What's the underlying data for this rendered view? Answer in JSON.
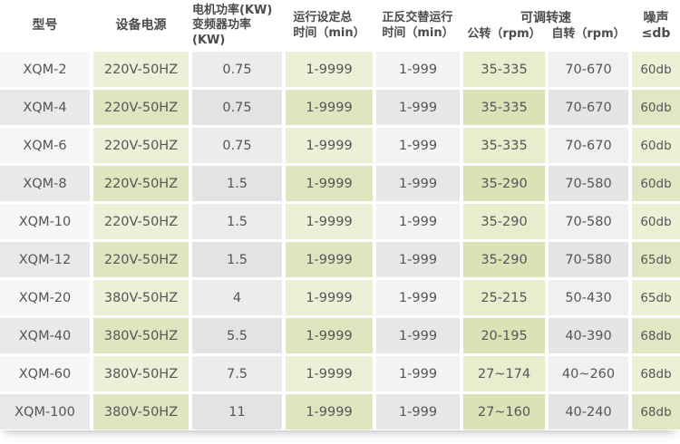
{
  "table": {
    "headers": {
      "model": "型号",
      "power_supply": "设备电源",
      "motor_power_line1": "电机功率(KW)",
      "motor_power_line2": "变频器功率(KW)",
      "run_time_line1": "运行设定总",
      "run_time_line2": "时间（min）",
      "alt_time_line1": "正反交替运行",
      "alt_time_line2": "时间（min）",
      "speed_group": "可调转速",
      "revolution": "公转（rpm）",
      "rotation": "自转（rpm）",
      "noise": "噪声≤db"
    },
    "rows": [
      {
        "model": "XQM-2",
        "power_supply": "220V-50HZ",
        "motor_power": "0.75",
        "run_time": "1-9999",
        "alt_time": "1-999",
        "revolution": "35-335",
        "rotation": "70-670",
        "noise": "60db"
      },
      {
        "model": "XQM-4",
        "power_supply": "220V-50HZ",
        "motor_power": "0.75",
        "run_time": "1-9999",
        "alt_time": "1-999",
        "revolution": "35-335",
        "rotation": "70-670",
        "noise": "60db"
      },
      {
        "model": "XQM-6",
        "power_supply": "220V-50HZ",
        "motor_power": "0.75",
        "run_time": "1-9999",
        "alt_time": "1-999",
        "revolution": "35-335",
        "rotation": "70-670",
        "noise": "60db"
      },
      {
        "model": "XQM-8",
        "power_supply": "220V-50HZ",
        "motor_power": "1.5",
        "run_time": "1-9999",
        "alt_time": "1-999",
        "revolution": "35-290",
        "rotation": "70-580",
        "noise": "60db"
      },
      {
        "model": "XQM-10",
        "power_supply": "220V-50HZ",
        "motor_power": "1.5",
        "run_time": "1-9999",
        "alt_time": "1-999",
        "revolution": "35-290",
        "rotation": "70-580",
        "noise": "60db"
      },
      {
        "model": "XQM-12",
        "power_supply": "220V-50HZ",
        "motor_power": "1.5",
        "run_time": "1-9999",
        "alt_time": "1-999",
        "revolution": "35-290",
        "rotation": "70-580",
        "noise": "65db"
      },
      {
        "model": "XQM-20",
        "power_supply": "380V-50HZ",
        "motor_power": "4",
        "run_time": "1-9999",
        "alt_time": "1-999",
        "revolution": "25-215",
        "rotation": "50-430",
        "noise": "65db"
      },
      {
        "model": "XQM-40",
        "power_supply": "380V-50HZ",
        "motor_power": "5.5",
        "run_time": "1-9999",
        "alt_time": "1-999",
        "revolution": "20-195",
        "rotation": "40-390",
        "noise": "68db"
      },
      {
        "model": "XQM-60",
        "power_supply": "380V-50HZ",
        "motor_power": "7.5",
        "run_time": "1-9999",
        "alt_time": "1-999",
        "revolution": "27~174",
        "rotation": "40~260",
        "noise": "68db"
      },
      {
        "model": "XQM-100",
        "power_supply": "380V-50HZ",
        "motor_power": "11",
        "run_time": "1-9999",
        "alt_time": "1-999",
        "revolution": "27~160",
        "rotation": "40-240",
        "noise": "68db"
      }
    ]
  },
  "colors": {
    "green_light": "#ebf1d6",
    "green_dark": "#dde6bf",
    "gray_light": "#f3f3f3",
    "gray_dark": "#e7e7e7",
    "header_text": "#4c4c4c",
    "cell_text": "#55555a",
    "background": "#ffffff"
  }
}
